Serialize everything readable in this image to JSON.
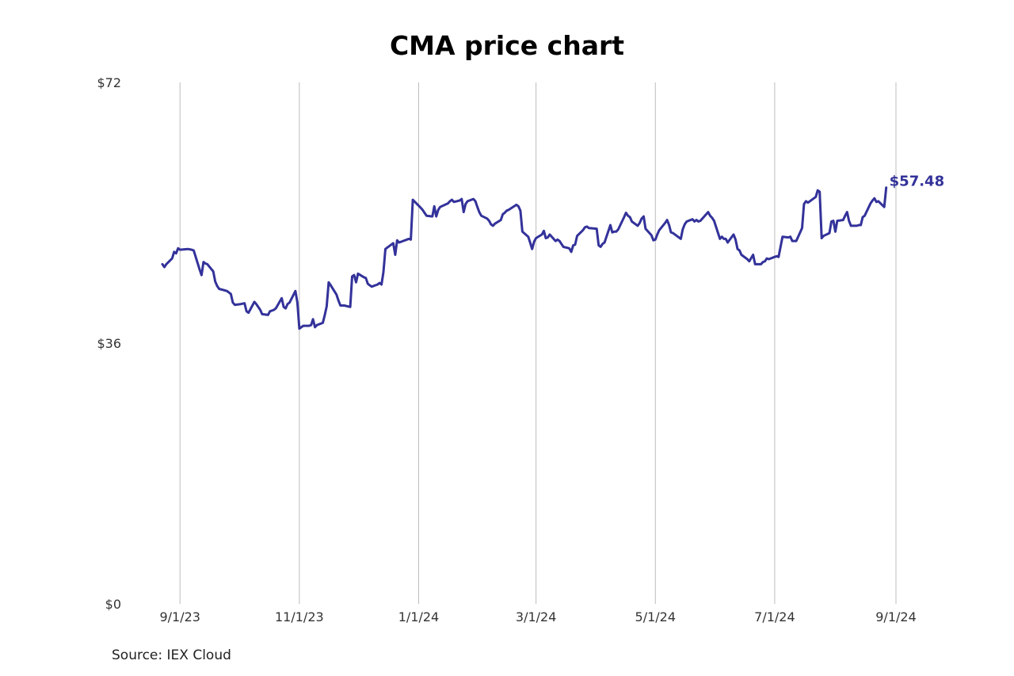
{
  "chart_data": {
    "type": "line",
    "title": "CMA price chart",
    "xlabel": "",
    "ylabel": "",
    "ylim": [
      0,
      72
    ],
    "xlim": [
      "2023-08-23",
      "2024-09-01"
    ],
    "y_ticks": [
      {
        "value": 0,
        "label": "$0"
      },
      {
        "value": 36,
        "label": "$36"
      },
      {
        "value": 72,
        "label": "$72"
      }
    ],
    "x_ticks": [
      {
        "date": "2023-09-01",
        "label": "9/1/23"
      },
      {
        "date": "2023-11-01",
        "label": "11/1/23"
      },
      {
        "date": "2024-01-01",
        "label": "1/1/24"
      },
      {
        "date": "2024-03-01",
        "label": "3/1/24"
      },
      {
        "date": "2024-05-01",
        "label": "5/1/24"
      },
      {
        "date": "2024-07-01",
        "label": "7/1/24"
      },
      {
        "date": "2024-09-01",
        "label": "9/1/24"
      }
    ],
    "grid": {
      "vertical": true,
      "horizontal": false
    },
    "series": [
      {
        "color": "#33329a",
        "points": [
          [
            "2023-08-23",
            46.9
          ],
          [
            "2023-08-24",
            46.5
          ],
          [
            "2023-08-25",
            46.9
          ],
          [
            "2023-08-28",
            47.7
          ],
          [
            "2023-08-29",
            48.6
          ],
          [
            "2023-08-30",
            48.4
          ],
          [
            "2023-08-31",
            49.1
          ],
          [
            "2023-09-01",
            48.9
          ],
          [
            "2023-09-05",
            49.0
          ],
          [
            "2023-09-07",
            48.9
          ],
          [
            "2023-09-08",
            48.8
          ],
          [
            "2023-09-11",
            46.2
          ],
          [
            "2023-09-12",
            45.4
          ],
          [
            "2023-09-13",
            47.2
          ],
          [
            "2023-09-14",
            47.0
          ],
          [
            "2023-09-15",
            46.9
          ],
          [
            "2023-09-18",
            45.9
          ],
          [
            "2023-09-19",
            44.5
          ],
          [
            "2023-09-20",
            43.9
          ],
          [
            "2023-09-21",
            43.5
          ],
          [
            "2023-09-25",
            43.2
          ],
          [
            "2023-09-27",
            42.8
          ],
          [
            "2023-09-28",
            41.6
          ],
          [
            "2023-09-29",
            41.3
          ],
          [
            "2023-10-02",
            41.4
          ],
          [
            "2023-10-04",
            41.5
          ],
          [
            "2023-10-05",
            40.4
          ],
          [
            "2023-10-06",
            40.2
          ],
          [
            "2023-10-09",
            41.7
          ],
          [
            "2023-10-10",
            41.4
          ],
          [
            "2023-10-12",
            40.6
          ],
          [
            "2023-10-13",
            40.0
          ],
          [
            "2023-10-16",
            39.9
          ],
          [
            "2023-10-17",
            40.4
          ],
          [
            "2023-10-19",
            40.6
          ],
          [
            "2023-10-20",
            40.8
          ],
          [
            "2023-10-23",
            42.2
          ],
          [
            "2023-10-24",
            41.0
          ],
          [
            "2023-10-25",
            40.8
          ],
          [
            "2023-10-26",
            41.4
          ],
          [
            "2023-10-27",
            41.6
          ],
          [
            "2023-10-30",
            43.2
          ],
          [
            "2023-10-31",
            41.6
          ],
          [
            "2023-11-01",
            38.0
          ],
          [
            "2023-11-02",
            38.2
          ],
          [
            "2023-11-03",
            38.4
          ],
          [
            "2023-11-06",
            38.4
          ],
          [
            "2023-11-07",
            38.5
          ],
          [
            "2023-11-08",
            39.3
          ],
          [
            "2023-11-09",
            38.2
          ],
          [
            "2023-11-10",
            38.5
          ],
          [
            "2023-11-13",
            38.8
          ],
          [
            "2023-11-14",
            39.9
          ],
          [
            "2023-11-15",
            41.1
          ],
          [
            "2023-11-16",
            44.4
          ],
          [
            "2023-11-17",
            44.0
          ],
          [
            "2023-11-20",
            42.7
          ],
          [
            "2023-11-21",
            41.9
          ],
          [
            "2023-11-22",
            41.2
          ],
          [
            "2023-11-24",
            41.2
          ],
          [
            "2023-11-27",
            41.0
          ],
          [
            "2023-11-28",
            45.2
          ],
          [
            "2023-11-29",
            45.4
          ],
          [
            "2023-11-30",
            44.4
          ],
          [
            "2023-12-01",
            45.6
          ],
          [
            "2023-12-04",
            45.1
          ],
          [
            "2023-12-05",
            45.0
          ],
          [
            "2023-12-06",
            44.2
          ],
          [
            "2023-12-07",
            44.0
          ],
          [
            "2023-12-08",
            43.8
          ],
          [
            "2023-12-11",
            44.1
          ],
          [
            "2023-12-12",
            44.3
          ],
          [
            "2023-12-13",
            44.1
          ],
          [
            "2023-12-14",
            45.8
          ],
          [
            "2023-12-15",
            49.0
          ],
          [
            "2023-12-18",
            49.6
          ],
          [
            "2023-12-19",
            49.8
          ],
          [
            "2023-12-20",
            48.2
          ],
          [
            "2023-12-21",
            50.2
          ],
          [
            "2023-12-22",
            49.9
          ],
          [
            "2023-12-26",
            50.3
          ],
          [
            "2023-12-27",
            50.4
          ],
          [
            "2023-12-28",
            50.3
          ],
          [
            "2023-12-29",
            55.8
          ],
          [
            "2024-01-02",
            54.7
          ],
          [
            "2024-01-03",
            54.4
          ],
          [
            "2024-01-04",
            54.0
          ],
          [
            "2024-01-05",
            53.6
          ],
          [
            "2024-01-08",
            53.5
          ],
          [
            "2024-01-09",
            54.9
          ],
          [
            "2024-01-10",
            53.5
          ],
          [
            "2024-01-11",
            54.4
          ],
          [
            "2024-01-12",
            54.8
          ],
          [
            "2024-01-16",
            55.3
          ],
          [
            "2024-01-17",
            55.6
          ],
          [
            "2024-01-18",
            55.8
          ],
          [
            "2024-01-19",
            55.5
          ],
          [
            "2024-01-22",
            55.7
          ],
          [
            "2024-01-23",
            55.9
          ],
          [
            "2024-01-24",
            54.1
          ],
          [
            "2024-01-25",
            55.2
          ],
          [
            "2024-01-26",
            55.6
          ],
          [
            "2024-01-29",
            55.9
          ],
          [
            "2024-01-30",
            55.6
          ],
          [
            "2024-01-31",
            54.8
          ],
          [
            "2024-02-01",
            54.1
          ],
          [
            "2024-02-02",
            53.6
          ],
          [
            "2024-02-05",
            53.2
          ],
          [
            "2024-02-06",
            52.9
          ],
          [
            "2024-02-07",
            52.4
          ],
          [
            "2024-02-08",
            52.2
          ],
          [
            "2024-02-09",
            52.5
          ],
          [
            "2024-02-12",
            53.0
          ],
          [
            "2024-02-13",
            53.8
          ],
          [
            "2024-02-14",
            54.0
          ],
          [
            "2024-02-15",
            54.3
          ],
          [
            "2024-02-16",
            54.4
          ],
          [
            "2024-02-20",
            55.1
          ],
          [
            "2024-02-21",
            54.9
          ],
          [
            "2024-02-22",
            54.3
          ],
          [
            "2024-02-23",
            51.4
          ],
          [
            "2024-02-26",
            50.7
          ],
          [
            "2024-02-27",
            49.9
          ],
          [
            "2024-02-28",
            49.0
          ],
          [
            "2024-02-29",
            50.0
          ],
          [
            "2024-03-01",
            50.5
          ],
          [
            "2024-03-04",
            51.0
          ],
          [
            "2024-03-05",
            51.5
          ],
          [
            "2024-03-06",
            50.5
          ],
          [
            "2024-03-07",
            50.6
          ],
          [
            "2024-03-08",
            51.0
          ],
          [
            "2024-03-11",
            50.1
          ],
          [
            "2024-03-12",
            50.3
          ],
          [
            "2024-03-13",
            50.1
          ],
          [
            "2024-03-14",
            49.7
          ],
          [
            "2024-03-15",
            49.3
          ],
          [
            "2024-03-18",
            49.1
          ],
          [
            "2024-03-19",
            48.6
          ],
          [
            "2024-03-20",
            49.5
          ],
          [
            "2024-03-21",
            49.6
          ],
          [
            "2024-03-22",
            50.8
          ],
          [
            "2024-03-25",
            51.6
          ],
          [
            "2024-03-26",
            52.0
          ],
          [
            "2024-03-27",
            52.1
          ],
          [
            "2024-03-28",
            51.9
          ],
          [
            "2024-04-01",
            51.8
          ],
          [
            "2024-04-02",
            49.5
          ],
          [
            "2024-04-03",
            49.3
          ],
          [
            "2024-04-04",
            49.7
          ],
          [
            "2024-04-05",
            49.9
          ],
          [
            "2024-04-08",
            52.3
          ],
          [
            "2024-04-09",
            51.3
          ],
          [
            "2024-04-10",
            51.4
          ],
          [
            "2024-04-11",
            51.4
          ],
          [
            "2024-04-12",
            51.7
          ],
          [
            "2024-04-15",
            53.4
          ],
          [
            "2024-04-16",
            54.0
          ],
          [
            "2024-04-17",
            53.6
          ],
          [
            "2024-04-18",
            53.4
          ],
          [
            "2024-04-19",
            52.8
          ],
          [
            "2024-04-22",
            52.2
          ],
          [
            "2024-04-23",
            52.6
          ],
          [
            "2024-04-24",
            53.2
          ],
          [
            "2024-04-25",
            53.5
          ],
          [
            "2024-04-26",
            51.8
          ],
          [
            "2024-04-29",
            50.9
          ],
          [
            "2024-04-30",
            50.2
          ],
          [
            "2024-05-01",
            50.3
          ],
          [
            "2024-05-02",
            51.0
          ],
          [
            "2024-05-03",
            51.6
          ],
          [
            "2024-05-06",
            52.6
          ],
          [
            "2024-05-07",
            53.0
          ],
          [
            "2024-05-08",
            52.3
          ],
          [
            "2024-05-09",
            51.3
          ],
          [
            "2024-05-10",
            51.2
          ],
          [
            "2024-05-13",
            50.6
          ],
          [
            "2024-05-14",
            50.4
          ],
          [
            "2024-05-15",
            51.7
          ],
          [
            "2024-05-16",
            52.4
          ],
          [
            "2024-05-17",
            52.8
          ],
          [
            "2024-05-20",
            53.1
          ],
          [
            "2024-05-21",
            52.8
          ],
          [
            "2024-05-22",
            53.0
          ],
          [
            "2024-05-23",
            52.8
          ],
          [
            "2024-05-24",
            52.9
          ],
          [
            "2024-05-28",
            54.1
          ],
          [
            "2024-05-29",
            53.6
          ],
          [
            "2024-05-30",
            53.3
          ],
          [
            "2024-05-31",
            52.9
          ],
          [
            "2024-06-03",
            50.4
          ],
          [
            "2024-06-04",
            50.7
          ],
          [
            "2024-06-05",
            50.4
          ],
          [
            "2024-06-06",
            50.4
          ],
          [
            "2024-06-07",
            49.9
          ],
          [
            "2024-06-10",
            51.0
          ],
          [
            "2024-06-11",
            50.3
          ],
          [
            "2024-06-12",
            49.0
          ],
          [
            "2024-06-13",
            48.8
          ],
          [
            "2024-06-14",
            48.2
          ],
          [
            "2024-06-17",
            47.6
          ],
          [
            "2024-06-18",
            47.3
          ],
          [
            "2024-06-20",
            48.2
          ],
          [
            "2024-06-21",
            46.9
          ],
          [
            "2024-06-24",
            46.9
          ],
          [
            "2024-06-25",
            47.2
          ],
          [
            "2024-06-26",
            47.3
          ],
          [
            "2024-06-27",
            47.7
          ],
          [
            "2024-06-28",
            47.6
          ],
          [
            "2024-07-01",
            47.9
          ],
          [
            "2024-07-02",
            48.0
          ],
          [
            "2024-07-03",
            47.9
          ],
          [
            "2024-07-05",
            50.7
          ],
          [
            "2024-07-08",
            50.6
          ],
          [
            "2024-07-09",
            50.7
          ],
          [
            "2024-07-10",
            50.1
          ],
          [
            "2024-07-11",
            50.1
          ],
          [
            "2024-07-12",
            50.1
          ],
          [
            "2024-07-15",
            51.9
          ],
          [
            "2024-07-16",
            55.2
          ],
          [
            "2024-07-17",
            55.6
          ],
          [
            "2024-07-18",
            55.4
          ],
          [
            "2024-07-19",
            55.6
          ],
          [
            "2024-07-22",
            56.2
          ],
          [
            "2024-07-23",
            57.1
          ],
          [
            "2024-07-24",
            56.9
          ],
          [
            "2024-07-25",
            50.5
          ],
          [
            "2024-07-26",
            50.8
          ],
          [
            "2024-07-29",
            51.2
          ],
          [
            "2024-07-30",
            52.8
          ],
          [
            "2024-07-31",
            52.9
          ],
          [
            "2024-08-01",
            51.4
          ],
          [
            "2024-08-02",
            52.9
          ],
          [
            "2024-08-05",
            53.0
          ],
          [
            "2024-08-06",
            53.6
          ],
          [
            "2024-08-07",
            54.1
          ],
          [
            "2024-08-08",
            52.9
          ],
          [
            "2024-08-09",
            52.2
          ],
          [
            "2024-08-12",
            52.2
          ],
          [
            "2024-08-13",
            52.3
          ],
          [
            "2024-08-14",
            52.3
          ],
          [
            "2024-08-15",
            53.4
          ],
          [
            "2024-08-16",
            53.6
          ],
          [
            "2024-08-19",
            55.3
          ],
          [
            "2024-08-20",
            55.7
          ],
          [
            "2024-08-21",
            56.0
          ],
          [
            "2024-08-22",
            55.5
          ],
          [
            "2024-08-23",
            55.6
          ],
          [
            "2024-08-26",
            54.8
          ],
          [
            "2024-08-27",
            57.48
          ]
        ]
      }
    ],
    "annotations": [
      {
        "text": "$57.48",
        "date": "2024-08-27",
        "value": 57.48
      }
    ],
    "source": "Source: IEX Cloud"
  }
}
